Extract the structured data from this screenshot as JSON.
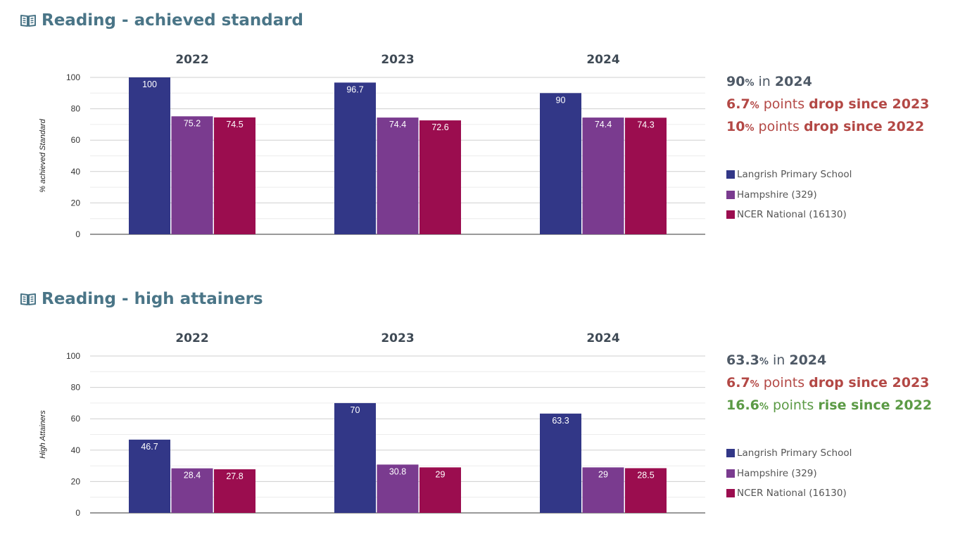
{
  "colors": {
    "title": "#4a7587",
    "neutral": "#4e5966",
    "drop": "#b34845",
    "rise": "#5b9a45",
    "school": "#323787",
    "hampshire": "#7a3b8f",
    "national": "#9b0d4f"
  },
  "legend": [
    {
      "label": "Langrish Primary School",
      "color": "#323787"
    },
    {
      "label": "Hampshire (329)",
      "color": "#7a3b8f"
    },
    {
      "label": "NCER National (16130)",
      "color": "#9b0d4f"
    }
  ],
  "sections": [
    {
      "title": "Reading - achieved standard",
      "icon": "open-book-icon",
      "summary": {
        "current": {
          "value": "90",
          "unit": "%",
          "text": "in",
          "year": "2024"
        },
        "change1": {
          "value": "6.7",
          "unit": "%",
          "text": "points",
          "direction": "drop since 2023",
          "kind": "drop"
        },
        "change2": {
          "value": "10",
          "unit": "%",
          "text": "points",
          "direction": "drop since 2022",
          "kind": "drop"
        }
      }
    },
    {
      "title": "Reading - high attainers",
      "icon": "open-book-icon",
      "summary": {
        "current": {
          "value": "63.3",
          "unit": "%",
          "text": "in",
          "year": "2024"
        },
        "change1": {
          "value": "6.7",
          "unit": "%",
          "text": "points",
          "direction": "drop since 2023",
          "kind": "drop"
        },
        "change2": {
          "value": "16.6",
          "unit": "%",
          "text": "points",
          "direction": "rise since 2022",
          "kind": "rise"
        }
      }
    }
  ],
  "chart_data": [
    {
      "type": "bar",
      "title": "Reading - achieved standard",
      "categories": [
        "2022",
        "2023",
        "2024"
      ],
      "ylabel": "% achieved Standard",
      "ylim": [
        0,
        100
      ],
      "yticks": [
        0,
        20,
        40,
        60,
        80,
        100
      ],
      "grid": true,
      "legend_position": "right",
      "series": [
        {
          "name": "Langrish Primary School",
          "values": [
            100,
            96.7,
            90
          ]
        },
        {
          "name": "Hampshire (329)",
          "values": [
            75.2,
            74.4,
            74.4
          ]
        },
        {
          "name": "NCER National (16130)",
          "values": [
            74.5,
            72.6,
            74.3
          ]
        }
      ]
    },
    {
      "type": "bar",
      "title": "Reading - high attainers",
      "categories": [
        "2022",
        "2023",
        "2024"
      ],
      "ylabel": "High Attainers",
      "ylim": [
        0,
        100
      ],
      "yticks": [
        0,
        20,
        40,
        60,
        80,
        100
      ],
      "grid": true,
      "legend_position": "right",
      "series": [
        {
          "name": "Langrish Primary School",
          "values": [
            46.7,
            70,
            63.3
          ]
        },
        {
          "name": "Hampshire (329)",
          "values": [
            28.4,
            30.8,
            29
          ]
        },
        {
          "name": "NCER National (16130)",
          "values": [
            27.8,
            29,
            28.5
          ]
        }
      ]
    }
  ]
}
